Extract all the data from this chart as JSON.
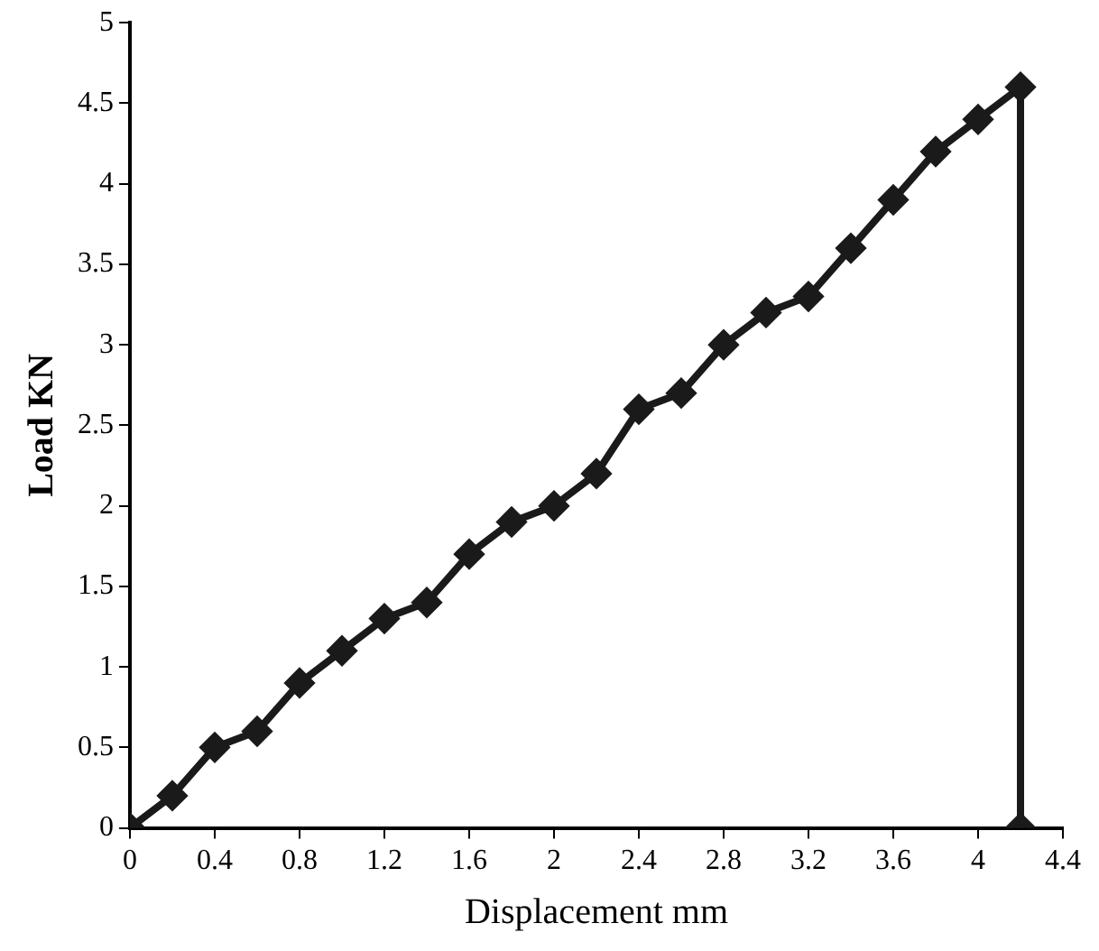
{
  "chart_data": {
    "type": "line",
    "xlabel": "Displacement mm",
    "ylabel": "Load KN",
    "series": [
      {
        "color": "#1a1a1a",
        "x": [
          0,
          0.2,
          0.4,
          0.6,
          0.8,
          1.0,
          1.2,
          1.4,
          1.6,
          1.8,
          2.0,
          2.2,
          2.4,
          2.6,
          2.8,
          3.0,
          3.2,
          3.4,
          3.6,
          3.8,
          4.0,
          4.2,
          4.2
        ],
        "values": [
          0,
          0.2,
          0.5,
          0.6,
          0.9,
          1.1,
          1.3,
          1.4,
          1.7,
          1.9,
          2.0,
          2.2,
          2.6,
          2.7,
          3.0,
          3.2,
          3.3,
          3.6,
          3.9,
          4.2,
          4.4,
          4.6,
          0
        ]
      }
    ],
    "xlim": [
      0,
      4.4
    ],
    "xticks": [
      0,
      0.4,
      0.8,
      1.2,
      1.6,
      2,
      2.4,
      2.8,
      3.2,
      3.6,
      4,
      4.4
    ],
    "ylim": [
      0,
      5
    ],
    "yticks": [
      0,
      0.5,
      1,
      1.5,
      2,
      2.5,
      3,
      3.5,
      4,
      4.5,
      5
    ],
    "grid": false,
    "legend": false,
    "marker": "diamond",
    "line_style": "solid"
  }
}
